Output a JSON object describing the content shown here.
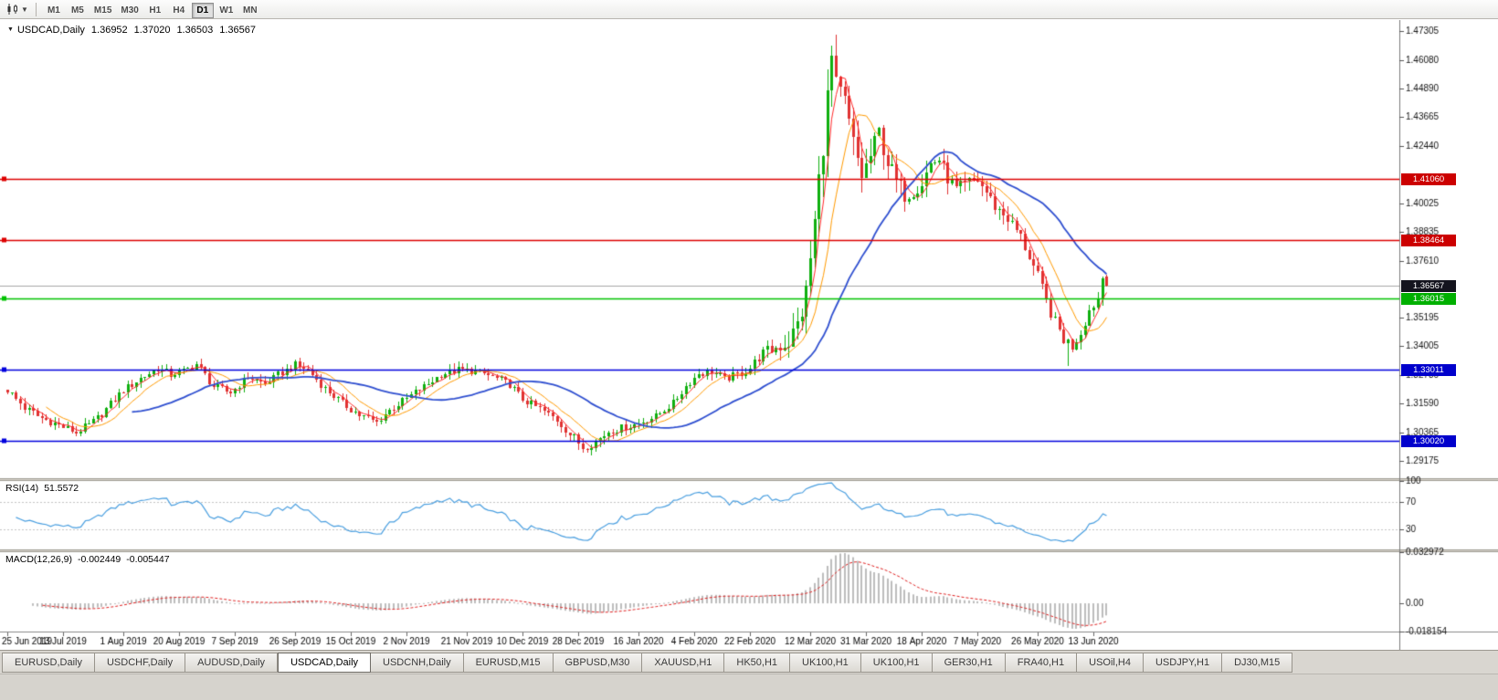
{
  "toolbar": {
    "timeframes": [
      "M1",
      "M5",
      "M15",
      "M30",
      "H1",
      "H4",
      "D1",
      "W1",
      "MN"
    ],
    "active_timeframe": "D1"
  },
  "quote": {
    "symbol": "USDCAD,Daily",
    "open": "1.36952",
    "high": "1.37020",
    "low": "1.36503",
    "close": "1.36567"
  },
  "rsi_panel": {
    "title": "RSI(14)",
    "value": "51.5572"
  },
  "macd_panel": {
    "title": "MACD(12,26,9)",
    "value": "-0.002449",
    "signal": "-0.005447"
  },
  "window": {
    "bottom_tabs": [
      {
        "label": "EURUSD,Daily",
        "active": false
      },
      {
        "label": "USDCHF,Daily",
        "active": false
      },
      {
        "label": "AUDUSD,Daily",
        "active": false
      },
      {
        "label": "USDCAD,Daily",
        "active": true
      },
      {
        "label": "USDCNH,Daily",
        "active": false
      },
      {
        "label": "EURUSD,M15",
        "active": false
      },
      {
        "label": "GBPUSD,M30",
        "active": false
      },
      {
        "label": "XAUUSD,H1",
        "active": false
      },
      {
        "label": "HK50,H1",
        "active": false
      },
      {
        "label": "UK100,H1",
        "active": false
      },
      {
        "label": "UK100,H1",
        "active": false
      },
      {
        "label": "GER30,H1",
        "active": false
      },
      {
        "label": "FRA40,H1",
        "active": false
      },
      {
        "label": "USOil,H4",
        "active": false
      },
      {
        "label": "USDJPY,H1",
        "active": false
      },
      {
        "label": "DJ30,M15",
        "active": false
      }
    ]
  },
  "chart_data": {
    "type": "candlestick",
    "title": "USDCAD,Daily",
    "symbol": "USDCAD",
    "timeframe": "Daily",
    "y_axis": {
      "min": 1.2843,
      "max": 1.4776,
      "tick_labels": [
        "1.47305",
        "1.46080",
        "1.44890",
        "1.43665",
        "1.42440",
        "1.40025",
        "1.38835",
        "1.37610",
        "1.35195",
        "1.34005",
        "1.32780",
        "1.31590",
        "1.30365",
        "1.29175"
      ]
    },
    "x_axis": {
      "tick_labels": [
        [
          0,
          "25 Jun 2019"
        ],
        [
          13,
          "13 Jul 2019"
        ],
        [
          27,
          "1 Aug 2019"
        ],
        [
          40,
          "20 Aug 2019"
        ],
        [
          53,
          "7 Sep 2019"
        ],
        [
          67,
          "26 Sep 2019"
        ],
        [
          80,
          "15 Oct 2019"
        ],
        [
          93,
          "2 Nov 2019"
        ],
        [
          107,
          "21 Nov 2019"
        ],
        [
          120,
          "10 Dec 2019"
        ],
        [
          133,
          "28 Dec 2019"
        ],
        [
          147,
          "16 Jan 2020"
        ],
        [
          160,
          "4 Feb 2020"
        ],
        [
          173,
          "22 Feb 2020"
        ],
        [
          187,
          "12 Mar 2020"
        ],
        [
          200,
          "31 Mar 2020"
        ],
        [
          213,
          "18 Apr 2020"
        ],
        [
          226,
          "7 May 2020"
        ],
        [
          240,
          "26 May 2020"
        ],
        [
          253,
          "13 Jun 2020"
        ]
      ]
    },
    "candles": {
      "count": 257,
      "up_color": "#0faf0f",
      "down_color": "#e03232",
      "close_anchors": [
        [
          0,
          1.3215
        ],
        [
          4,
          1.314
        ],
        [
          8,
          1.3095
        ],
        [
          13,
          1.306
        ],
        [
          16,
          1.3035
        ],
        [
          20,
          1.308
        ],
        [
          24,
          1.3155
        ],
        [
          27,
          1.3215
        ],
        [
          31,
          1.3265
        ],
        [
          35,
          1.3305
        ],
        [
          38,
          1.328
        ],
        [
          41,
          1.3295
        ],
        [
          44,
          1.3325
        ],
        [
          48,
          1.323
        ],
        [
          52,
          1.3205
        ],
        [
          56,
          1.327
        ],
        [
          60,
          1.324
        ],
        [
          64,
          1.329
        ],
        [
          67,
          1.332
        ],
        [
          70,
          1.33
        ],
        [
          74,
          1.322
        ],
        [
          78,
          1.316
        ],
        [
          82,
          1.311
        ],
        [
          86,
          1.308
        ],
        [
          89,
          1.313
        ],
        [
          93,
          1.318
        ],
        [
          97,
          1.323
        ],
        [
          101,
          1.328
        ],
        [
          105,
          1.33
        ],
        [
          109,
          1.3295
        ],
        [
          113,
          1.327
        ],
        [
          117,
          1.324
        ],
        [
          120,
          1.3175
        ],
        [
          124,
          1.3135
        ],
        [
          128,
          1.309
        ],
        [
          131,
          1.303
        ],
        [
          134,
          1.2975
        ],
        [
          137,
          1.2995
        ],
        [
          140,
          1.304
        ],
        [
          144,
          1.306
        ],
        [
          147,
          1.3075
        ],
        [
          151,
          1.3105
        ],
        [
          155,
          1.316
        ],
        [
          158,
          1.323
        ],
        [
          161,
          1.3285
        ],
        [
          164,
          1.3295
        ],
        [
          167,
          1.326
        ],
        [
          170,
          1.328
        ],
        [
          173,
          1.331
        ],
        [
          176,
          1.337
        ],
        [
          179,
          1.3395
        ],
        [
          182,
          1.342
        ],
        [
          184,
          1.349
        ],
        [
          186,
          1.362
        ],
        [
          188,
          1.392
        ],
        [
          190,
          1.427
        ],
        [
          192,
          1.461
        ],
        [
          193,
          1.448
        ],
        [
          195,
          1.442
        ],
        [
          197,
          1.425
        ],
        [
          199,
          1.412
        ],
        [
          201,
          1.42
        ],
        [
          203,
          1.43
        ],
        [
          205,
          1.418
        ],
        [
          207,
          1.409
        ],
        [
          209,
          1.404
        ],
        [
          211,
          1.406
        ],
        [
          213,
          1.409
        ],
        [
          215,
          1.417
        ],
        [
          217,
          1.419
        ],
        [
          219,
          1.411
        ],
        [
          221,
          1.406
        ],
        [
          224,
          1.409
        ],
        [
          226,
          1.41
        ],
        [
          228,
          1.405
        ],
        [
          230,
          1.399
        ],
        [
          233,
          1.394
        ],
        [
          236,
          1.386
        ],
        [
          238,
          1.378
        ],
        [
          240,
          1.369
        ],
        [
          242,
          1.359
        ],
        [
          244,
          1.35
        ],
        [
          246,
          1.343
        ],
        [
          248,
          1.34
        ],
        [
          250,
          1.346
        ],
        [
          252,
          1.355
        ],
        [
          253,
          1.3575
        ],
        [
          254,
          1.36
        ],
        [
          255,
          1.369
        ],
        [
          256,
          1.36567
        ]
      ],
      "volatility_anchors": [
        [
          0,
          0.0038
        ],
        [
          60,
          0.0035
        ],
        [
          120,
          0.0035
        ],
        [
          133,
          0.0045
        ],
        [
          150,
          0.0032
        ],
        [
          175,
          0.0045
        ],
        [
          183,
          0.01
        ],
        [
          187,
          0.016
        ],
        [
          193,
          0.015
        ],
        [
          200,
          0.011
        ],
        [
          210,
          0.008
        ],
        [
          220,
          0.0065
        ],
        [
          232,
          0.006
        ],
        [
          240,
          0.0065
        ],
        [
          248,
          0.0055
        ],
        [
          256,
          0.004
        ]
      ],
      "overrides": [
        {
          "i": 134,
          "low": 1.2952
        },
        {
          "i": 192,
          "high": 1.4668
        },
        {
          "i": 247,
          "low": 1.3315
        },
        {
          "i": 256,
          "open": 1.36952,
          "high": 1.3702,
          "low": 1.36503,
          "close": 1.36567
        }
      ]
    },
    "moving_averages": [
      {
        "period": 4,
        "color": "#ff2a2a",
        "width": 1
      },
      {
        "period": 10,
        "color": "#ff9a00",
        "width": 1
      },
      {
        "period": 30,
        "color": "#2f4fd0",
        "width": 1.8
      }
    ],
    "horizontal_lines": [
      {
        "price": 1.4106,
        "label": "1.41060",
        "color": "#dd0000",
        "tag_bg": "#cc0000",
        "width": 1.3
      },
      {
        "price": 1.38464,
        "label": "1.38464",
        "color": "#dd0000",
        "tag_bg": "#cc0000",
        "width": 1.3
      },
      {
        "price": 1.36015,
        "label": "1.36015",
        "color": "#00c200",
        "tag_bg": "#00b000",
        "width": 1.6
      },
      {
        "price": 1.33011,
        "label": "1.33011",
        "color": "#0000dd",
        "tag_bg": "#0000cc",
        "width": 1.6
      },
      {
        "price": 1.3002,
        "label": "1.30020",
        "color": "#0000dd",
        "tag_bg": "#0000cc",
        "width": 1.6
      }
    ],
    "current_price": {
      "value": 1.36567,
      "label": "1.36567",
      "line_color": "#a8a8a8",
      "tag_bg": "#14141e"
    },
    "rsi": {
      "period": 14,
      "value": 51.5572,
      "color": "#4a9fe0",
      "levels": [
        70,
        30
      ],
      "range": [
        0,
        100
      ],
      "axis_labels": [
        {
          "value": 100,
          "text": "100"
        },
        {
          "value": 70,
          "text": "70"
        },
        {
          "value": 30,
          "text": "30"
        }
      ]
    },
    "macd": {
      "fast": 12,
      "slow": 26,
      "signal_period": 9,
      "value": -0.002449,
      "signal_value": -0.005447,
      "range": [
        -0.018154,
        0.032972
      ],
      "hist_color": "#bdbdbd",
      "signal_color": "#e02020",
      "axis_labels": [
        {
          "value": 0.032972,
          "text": "0.032972"
        },
        {
          "value": 0,
          "text": "0.00"
        },
        {
          "value": -0.018154,
          "text": "-0.018154"
        }
      ]
    }
  }
}
